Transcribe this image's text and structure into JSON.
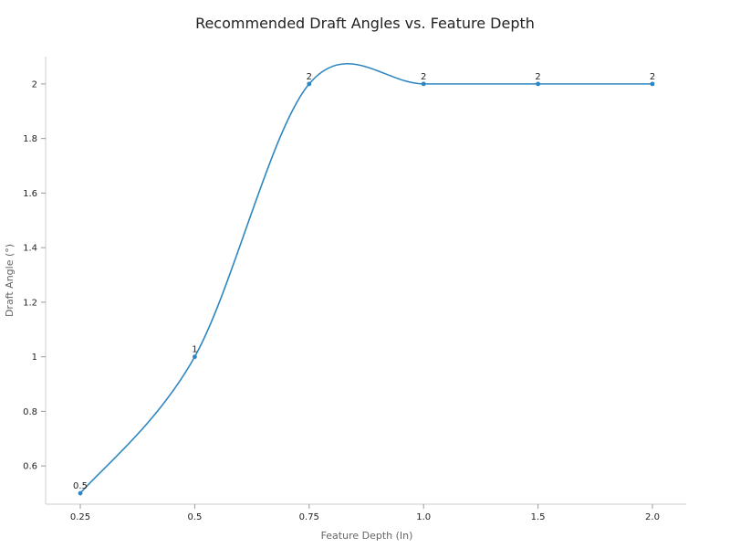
{
  "chart_data": {
    "type": "line",
    "title": "Recommended Draft Angles vs. Feature Depth",
    "xlabel": "Feature Depth (In)",
    "ylabel": "Draft Angle (°)",
    "categories": [
      "0.25",
      "0.5",
      "0.75",
      "1.0",
      "1.5",
      "2.0"
    ],
    "series": [
      {
        "values": [
          0.5,
          1,
          2,
          2,
          2,
          2
        ],
        "labels": [
          "0.5",
          "1",
          "2",
          "2",
          "2",
          "2"
        ]
      }
    ],
    "y_ticks": [
      0.6,
      0.8,
      1,
      1.2,
      1.4,
      1.6,
      1.8,
      2
    ],
    "y_tick_labels": [
      "0.6",
      "0.8",
      "1",
      "1.2",
      "1.4",
      "1.6",
      "1.8",
      "2"
    ],
    "ylim": [
      0.46,
      2.1
    ],
    "grid": false,
    "smooth": true,
    "colors": {
      "line": "#2e86c1",
      "point": "#2e86c1"
    }
  }
}
